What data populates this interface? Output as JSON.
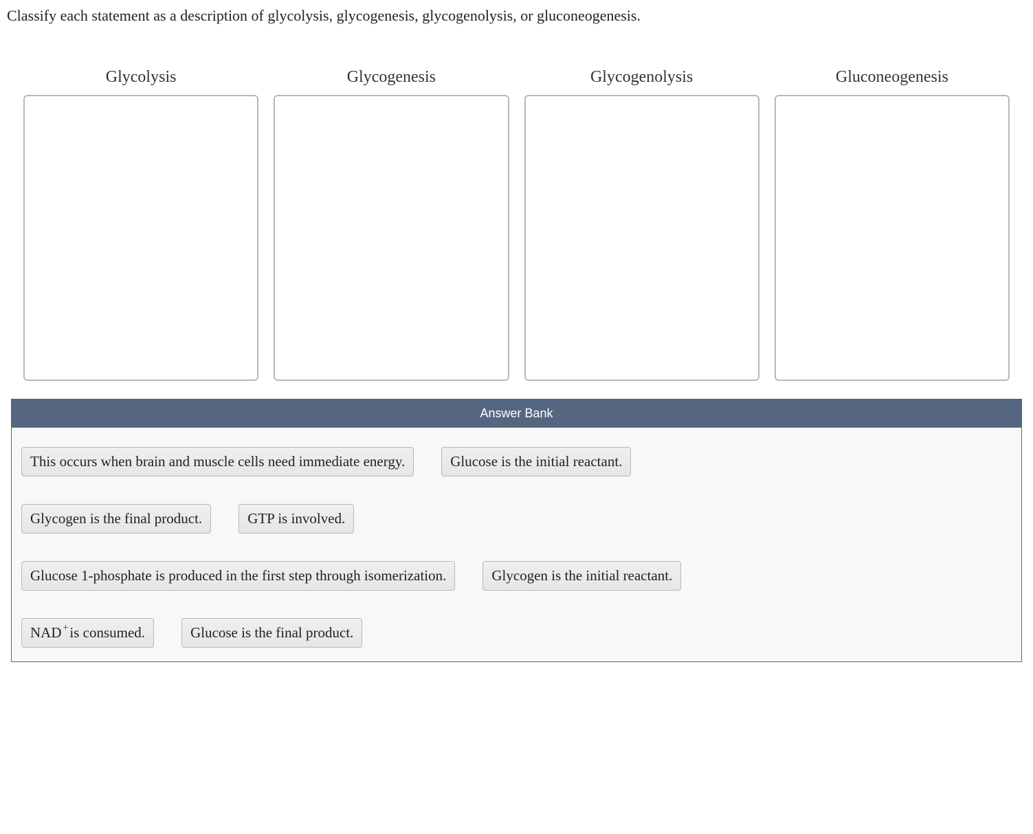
{
  "question": "Classify each statement as a description of glycolysis, glycogenesis, glycogenolysis, or gluconeogenesis.",
  "categories": [
    {
      "title": "Glycolysis"
    },
    {
      "title": "Glycogenesis"
    },
    {
      "title": "Glycogenolysis"
    },
    {
      "title": "Gluconeogenesis"
    }
  ],
  "answerBank": {
    "header": "Answer Bank",
    "rows": [
      [
        {
          "text": "This occurs when brain and muscle cells need immediate energy.",
          "name": "chip-immediate-energy"
        },
        {
          "text": "Glucose is the initial reactant.",
          "name": "chip-glucose-initial"
        }
      ],
      [
        {
          "text": "Glycogen is the final product.",
          "name": "chip-glycogen-final"
        },
        {
          "text": "GTP is involved.",
          "name": "chip-gtp-involved"
        }
      ],
      [
        {
          "text": "Glucose 1-phosphate is produced in the first step through isomerization.",
          "name": "chip-g1p-isomerization"
        },
        {
          "text": "Glycogen is the initial reactant.",
          "name": "chip-glycogen-initial"
        }
      ],
      [
        {
          "pre": "NAD",
          "sup": "+",
          "post": " is consumed.",
          "name": "chip-nad-consumed"
        },
        {
          "text": "Glucose is the final product.",
          "name": "chip-glucose-final"
        }
      ]
    ]
  },
  "colors": {
    "bankHeaderBg": "#556680",
    "bankHeaderText": "#ffffff",
    "bankBodyBg": "#f8f8f8",
    "dropzoneBorder": "#b8b8b8",
    "chipBg": "#e8e8e8",
    "chipBorder": "#b8b8b8",
    "textColor": "#222222"
  }
}
